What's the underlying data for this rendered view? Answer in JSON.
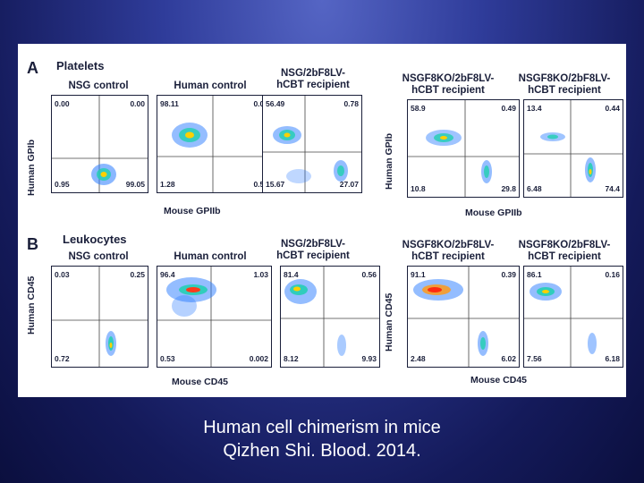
{
  "figure": {
    "panel_a": {
      "letter": "A",
      "title": "Platelets",
      "x_axis": "Mouse GPIIb",
      "y_axis": "Human GPIb",
      "plots": [
        {
          "title": [
            "NSG control",
            ""
          ],
          "ul": "0.00",
          "ur": "0.00",
          "ll": "0.95",
          "lr": "99.05"
        },
        {
          "title": [
            "Human control",
            ""
          ],
          "ul": "98.11",
          "ur": "0.05",
          "ll": "1.28",
          "lr": "0.56"
        },
        {
          "title": [
            "NSG/2bF8LV-",
            "hCBT recipient"
          ],
          "ul": "56.49",
          "ur": "0.78",
          "ll": "15.67",
          "lr": "27.07"
        },
        {
          "title": [
            "NSGF8KO/2bF8LV-",
            "hCBT recipient"
          ],
          "ul": "58.9",
          "ur": "0.49",
          "ll": "10.8",
          "lr": "29.8"
        },
        {
          "title": [
            "NSGF8KO/2bF8LV-",
            "hCBT recipient"
          ],
          "ul": "13.4",
          "ur": "0.44",
          "ll": "6.48",
          "lr": "74.4"
        }
      ]
    },
    "panel_b": {
      "letter": "B",
      "title": "Leukocytes",
      "x_axis": "Mouse CD45",
      "y_axis": "Human CD45",
      "plots": [
        {
          "title": [
            "NSG control",
            ""
          ],
          "ul": "0.03",
          "ur": "0.25",
          "ll": "0.72",
          "lr": ""
        },
        {
          "title": [
            "Human control",
            ""
          ],
          "ul": "96.4",
          "ur": "1.03",
          "ll": "0.53",
          "lr": "0.002"
        },
        {
          "title": [
            "NSG/2bF8LV-",
            "hCBT recipient"
          ],
          "ul": "81.4",
          "ur": "0.56",
          "ll": "8.12",
          "lr": "9.93"
        },
        {
          "title": [
            "NSGF8KO/2bF8LV-",
            "hCBT recipient"
          ],
          "ul": "91.1",
          "ur": "0.39",
          "ll": "2.48",
          "lr": "6.02"
        },
        {
          "title": [
            "NSGF8KO/2bF8LV-",
            "hCBT recipient"
          ],
          "ul": "86.1",
          "ur": "0.16",
          "ll": "7.56",
          "lr": "6.18"
        }
      ]
    }
  },
  "caption": {
    "line1": "Human cell chimerism in mice",
    "line2": "Qizhen Shi. Blood. 2014."
  }
}
